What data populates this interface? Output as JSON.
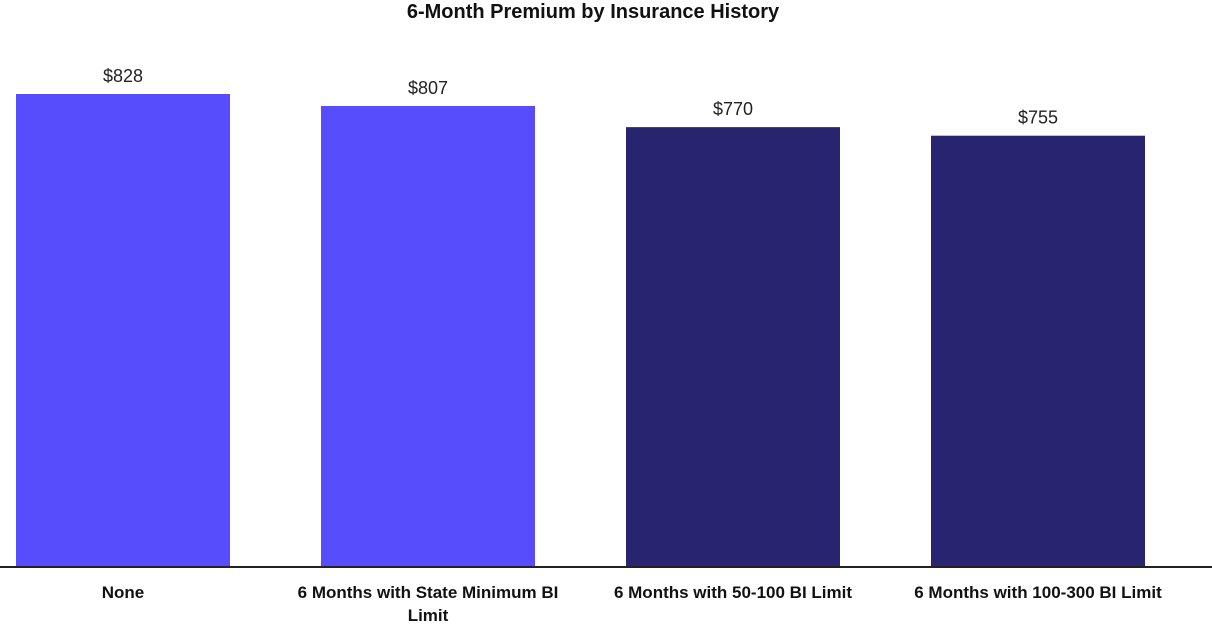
{
  "chart_data": {
    "type": "bar",
    "title": "6-Month Premium by Insurance History",
    "xlabel": "",
    "ylabel": "",
    "categories": [
      "None",
      "6 Months with State Minimum BI Limit",
      "6 Months with 50-100 BI Limit",
      "6 Months with 100-300 BI Limit"
    ],
    "values": [
      828,
      807,
      770,
      755
    ],
    "value_labels": [
      "$828",
      "$807",
      "$770",
      "$755"
    ],
    "ylim": [
      0,
      828
    ],
    "grid": false,
    "legend": "none",
    "colors": [
      "#584dfd",
      "#584dfd",
      "#282470",
      "#282470"
    ],
    "axis_color": "#222222"
  }
}
